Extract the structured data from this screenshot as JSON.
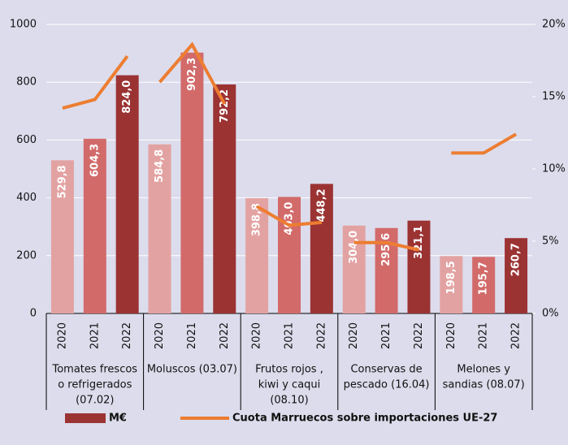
{
  "chart_data": {
    "type": "bar",
    "categories": [
      "2020",
      "2021",
      "2022",
      "2020",
      "2021",
      "2022",
      "2020",
      "2021",
      "2022",
      "2020",
      "2021",
      "2022",
      "2020",
      "2021",
      "2022"
    ],
    "groups": [
      {
        "lines": [
          "Tomates frescos",
          "o refrigerados",
          "(07.02)"
        ]
      },
      {
        "lines": [
          "Moluscos (03.07)"
        ]
      },
      {
        "lines": [
          "Frutos rojos ,",
          "kiwi  y caqui",
          "(08.10)"
        ]
      },
      {
        "lines": [
          "Conservas de",
          "pescado (16.04)"
        ]
      },
      {
        "lines": [
          "Melones y",
          "sandias  (08.07)"
        ]
      }
    ],
    "series": [
      {
        "name": "M€",
        "color": "#9b3333",
        "colors": [
          "#e3a2a2",
          "#d26a6a",
          "#9b3333",
          "#e3a2a2",
          "#d26a6a",
          "#9b3333",
          "#e3a2a2",
          "#d26a6a",
          "#9b3333",
          "#e3a2a2",
          "#d26a6a",
          "#9b3333",
          "#e3a2a2",
          "#d26a6a",
          "#9b3333"
        ],
        "values": [
          529.8,
          604.3,
          824.0,
          584.8,
          902.3,
          792.2,
          398.8,
          403.0,
          448.2,
          304.0,
          295.6,
          321.1,
          198.5,
          195.7,
          260.7
        ],
        "value_labels": [
          "529,8",
          "604,3",
          "824,0",
          "584,8",
          "902,3",
          "792,2",
          "398,8",
          "403,0",
          "448,2",
          "304,0",
          "295,6",
          "321,1",
          "198,5",
          "195,7",
          "260,7"
        ]
      },
      {
        "name": "Cuota Marruecos sobre importaciones UE-27",
        "type": "line",
        "color": "#ed7d31",
        "axis": "y2",
        "values": [
          14.2,
          14.8,
          17.8,
          16.0,
          18.6,
          14.5,
          7.4,
          6.1,
          6.3,
          4.9,
          4.9,
          4.4,
          11.1,
          11.1,
          12.4
        ]
      }
    ],
    "ylim": [
      0,
      1000
    ],
    "yticks": [
      0,
      200,
      400,
      600,
      800,
      1000
    ],
    "y2lim": [
      0,
      20
    ],
    "y2ticks": [
      {
        "value": 0,
        "label": "0%"
      },
      {
        "value": 5,
        "label": "5%"
      },
      {
        "value": 10,
        "label": "10%"
      },
      {
        "value": 15,
        "label": "15%"
      },
      {
        "value": 20,
        "label": "20%"
      }
    ],
    "grid": true
  }
}
